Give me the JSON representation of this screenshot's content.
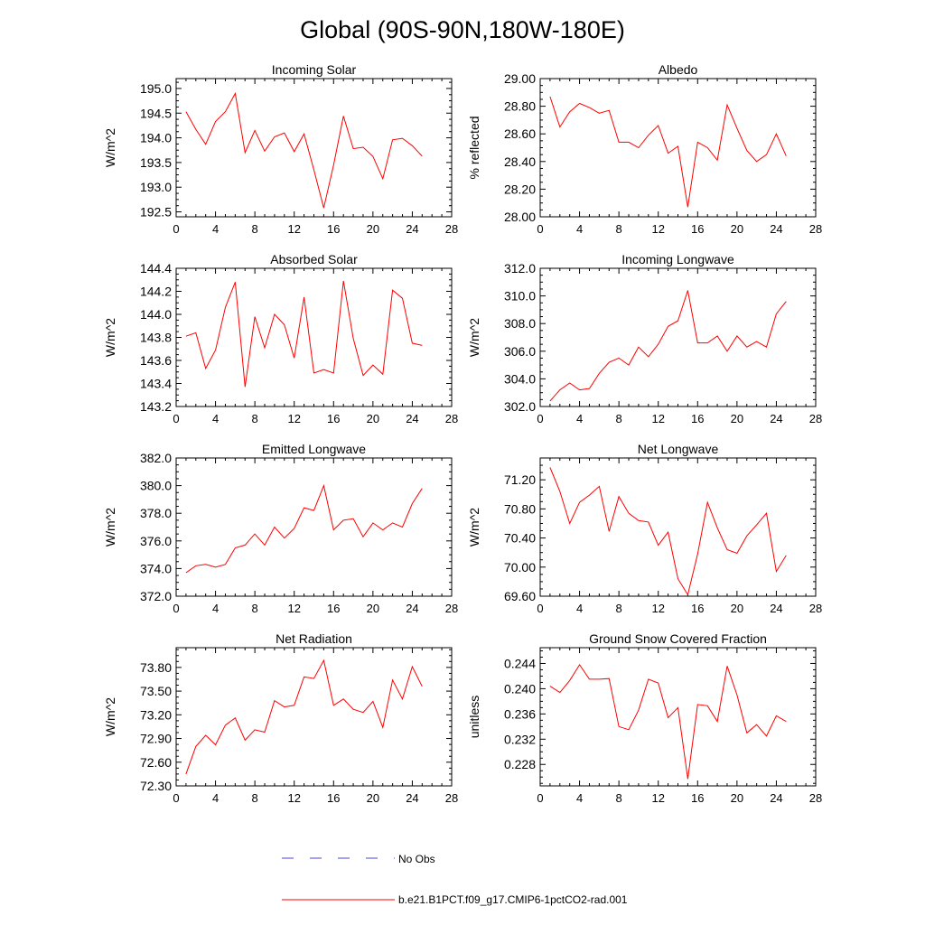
{
  "title": "Global (90S-90N,180W-180E)",
  "legend": [
    {
      "label": "No Obs",
      "color": "#4a4ad6",
      "dash": true
    },
    {
      "label": "b.e21.B1PCT.f09_g17.CMIP6-1pctCO2-rad.001",
      "color": "#ff0000",
      "dash": false
    }
  ],
  "chart_data": [
    {
      "type": "line",
      "title": "Incoming Solar",
      "ylabel": "W/m^2",
      "xlim": [
        0,
        28
      ],
      "xticks": [
        "0",
        "4",
        "8",
        "12",
        "16",
        "20",
        "24",
        "28"
      ],
      "ylim": [
        192.4,
        195.2
      ],
      "yticks": [
        "192.5",
        "193.0",
        "193.5",
        "194.0",
        "194.5",
        "195.0"
      ],
      "series": [
        {
          "color": "#ff0000",
          "x": [
            1,
            2,
            3,
            4,
            5,
            6,
            7,
            8,
            9,
            10,
            11,
            12,
            13,
            14,
            15,
            16,
            17,
            18,
            19,
            20,
            21,
            22,
            23,
            24,
            25
          ],
          "y": [
            194.53,
            194.17,
            193.87,
            194.33,
            194.53,
            194.9,
            193.7,
            194.15,
            193.73,
            194.02,
            194.1,
            193.72,
            194.08,
            193.35,
            192.58,
            193.45,
            194.44,
            193.78,
            193.81,
            193.62,
            193.17,
            193.96,
            193.99,
            193.84,
            193.63
          ]
        }
      ]
    },
    {
      "type": "line",
      "title": "Albedo",
      "ylabel": "% reflected",
      "xlim": [
        0,
        28
      ],
      "xticks": [
        "0",
        "4",
        "8",
        "12",
        "16",
        "20",
        "24",
        "28"
      ],
      "ylim": [
        28.0,
        29.0
      ],
      "yticks": [
        "28.00",
        "28.20",
        "28.40",
        "28.60",
        "28.80",
        "29.00"
      ],
      "series": [
        {
          "color": "#ff0000",
          "x": [
            1,
            2,
            3,
            4,
            5,
            6,
            7,
            8,
            9,
            10,
            11,
            12,
            13,
            14,
            15,
            16,
            17,
            18,
            19,
            20,
            21,
            22,
            23,
            24,
            25
          ],
          "y": [
            28.87,
            28.65,
            28.76,
            28.82,
            28.79,
            28.75,
            28.77,
            28.54,
            28.54,
            28.5,
            28.59,
            28.66,
            28.46,
            28.51,
            28.07,
            28.54,
            28.5,
            28.41,
            28.81,
            28.64,
            28.48,
            28.4,
            28.45,
            28.6,
            28.44
          ]
        }
      ]
    },
    {
      "type": "line",
      "title": "Absorbed Solar",
      "ylabel": "W/m^2",
      "xlim": [
        0,
        28
      ],
      "xticks": [
        "0",
        "4",
        "8",
        "12",
        "16",
        "20",
        "24",
        "28"
      ],
      "ylim": [
        143.2,
        144.4
      ],
      "yticks": [
        "143.2",
        "143.4",
        "143.6",
        "143.8",
        "144.0",
        "144.2",
        "144.4"
      ],
      "series": [
        {
          "color": "#ff0000",
          "x": [
            1,
            2,
            3,
            4,
            5,
            6,
            7,
            8,
            9,
            10,
            11,
            12,
            13,
            14,
            15,
            16,
            17,
            18,
            19,
            20,
            21,
            22,
            23,
            24,
            25
          ],
          "y": [
            143.81,
            143.84,
            143.53,
            143.69,
            144.06,
            144.28,
            143.37,
            143.98,
            143.71,
            144.0,
            143.91,
            143.62,
            144.15,
            143.49,
            143.52,
            143.49,
            144.29,
            143.79,
            143.47,
            143.56,
            143.48,
            144.21,
            144.14,
            143.75,
            143.73
          ]
        }
      ]
    },
    {
      "type": "line",
      "title": "Incoming Longwave",
      "ylabel": "W/m^2",
      "xlim": [
        0,
        28
      ],
      "xticks": [
        "0",
        "4",
        "8",
        "12",
        "16",
        "20",
        "24",
        "28"
      ],
      "ylim": [
        302.0,
        312.0
      ],
      "yticks": [
        "302.0",
        "304.0",
        "306.0",
        "308.0",
        "310.0",
        "312.0"
      ],
      "series": [
        {
          "color": "#ff0000",
          "x": [
            1,
            2,
            3,
            4,
            5,
            6,
            7,
            8,
            9,
            10,
            11,
            12,
            13,
            14,
            15,
            16,
            17,
            18,
            19,
            20,
            21,
            22,
            23,
            24,
            25
          ],
          "y": [
            302.4,
            303.2,
            303.7,
            303.2,
            303.3,
            304.4,
            305.2,
            305.5,
            305.0,
            306.3,
            305.6,
            306.5,
            307.8,
            308.2,
            310.4,
            306.6,
            306.6,
            307.1,
            306.0,
            307.1,
            306.3,
            306.7,
            306.3,
            308.7,
            309.6
          ]
        }
      ]
    },
    {
      "type": "line",
      "title": "Emitted Longwave",
      "ylabel": "W/m^2",
      "xlim": [
        0,
        28
      ],
      "xticks": [
        "0",
        "4",
        "8",
        "12",
        "16",
        "20",
        "24",
        "28"
      ],
      "ylim": [
        372.0,
        382.0
      ],
      "yticks": [
        "372.0",
        "374.0",
        "376.0",
        "378.0",
        "380.0",
        "382.0"
      ],
      "series": [
        {
          "color": "#ff0000",
          "x": [
            1,
            2,
            3,
            4,
            5,
            6,
            7,
            8,
            9,
            10,
            11,
            12,
            13,
            14,
            15,
            16,
            17,
            18,
            19,
            20,
            21,
            22,
            23,
            24,
            25
          ],
          "y": [
            373.7,
            374.2,
            374.3,
            374.1,
            374.3,
            375.5,
            375.7,
            376.5,
            375.7,
            377.0,
            376.2,
            376.9,
            378.4,
            378.2,
            380.0,
            376.8,
            377.5,
            377.6,
            376.3,
            377.3,
            376.8,
            377.3,
            377.0,
            378.7,
            379.8
          ]
        }
      ]
    },
    {
      "type": "line",
      "title": "Net Longwave",
      "ylabel": "W/m^2",
      "xlim": [
        0,
        28
      ],
      "xticks": [
        "0",
        "4",
        "8",
        "12",
        "16",
        "20",
        "24",
        "28"
      ],
      "ylim": [
        69.6,
        71.5
      ],
      "yticks": [
        "69.60",
        "70.00",
        "70.40",
        "70.80",
        "71.20"
      ],
      "series": [
        {
          "color": "#ff0000",
          "x": [
            1,
            2,
            3,
            4,
            5,
            6,
            7,
            8,
            9,
            10,
            11,
            12,
            13,
            14,
            15,
            16,
            17,
            18,
            19,
            20,
            21,
            22,
            23,
            24,
            25
          ],
          "y": [
            71.37,
            71.04,
            70.6,
            70.89,
            70.99,
            71.11,
            70.49,
            70.97,
            70.74,
            70.64,
            70.62,
            70.3,
            70.48,
            69.84,
            69.62,
            70.18,
            70.89,
            70.54,
            70.24,
            70.19,
            70.43,
            70.58,
            70.74,
            69.94,
            70.16
          ]
        }
      ]
    },
    {
      "type": "line",
      "title": "Net Radiation",
      "ylabel": "W/m^2",
      "xlim": [
        0,
        28
      ],
      "xticks": [
        "0",
        "4",
        "8",
        "12",
        "16",
        "20",
        "24",
        "28"
      ],
      "ylim": [
        72.3,
        74.05
      ],
      "yticks": [
        "72.30",
        "72.60",
        "72.90",
        "73.20",
        "73.50",
        "73.80"
      ],
      "series": [
        {
          "color": "#ff0000",
          "x": [
            1,
            2,
            3,
            4,
            5,
            6,
            7,
            8,
            9,
            10,
            11,
            12,
            13,
            14,
            15,
            16,
            17,
            18,
            19,
            20,
            21,
            22,
            23,
            24,
            25
          ],
          "y": [
            72.45,
            72.8,
            72.94,
            72.82,
            73.07,
            73.16,
            72.88,
            73.01,
            72.98,
            73.38,
            73.3,
            73.32,
            73.68,
            73.66,
            73.89,
            73.32,
            73.4,
            73.27,
            73.23,
            73.37,
            73.04,
            73.64,
            73.4,
            73.81,
            73.56
          ]
        }
      ]
    },
    {
      "type": "line",
      "title": "Ground Snow Covered Fraction",
      "ylabel": "unitless",
      "xlim": [
        0,
        28
      ],
      "xticks": [
        "0",
        "4",
        "8",
        "12",
        "16",
        "20",
        "24",
        "28"
      ],
      "ylim": [
        0.2246,
        0.2465
      ],
      "yticks": [
        "0.228",
        "0.232",
        "0.236",
        "0.240",
        "0.244"
      ],
      "series": [
        {
          "color": "#ff0000",
          "x": [
            1,
            2,
            3,
            4,
            5,
            6,
            7,
            8,
            9,
            10,
            11,
            12,
            13,
            14,
            15,
            16,
            17,
            18,
            19,
            20,
            21,
            22,
            23,
            24,
            25
          ],
          "y": [
            0.2404,
            0.2394,
            0.2413,
            0.2438,
            0.2415,
            0.2415,
            0.2416,
            0.234,
            0.2335,
            0.2366,
            0.2415,
            0.2409,
            0.2354,
            0.237,
            0.2257,
            0.2375,
            0.2373,
            0.2348,
            0.2436,
            0.239,
            0.233,
            0.2343,
            0.2325,
            0.2357,
            0.2348
          ]
        }
      ]
    }
  ]
}
